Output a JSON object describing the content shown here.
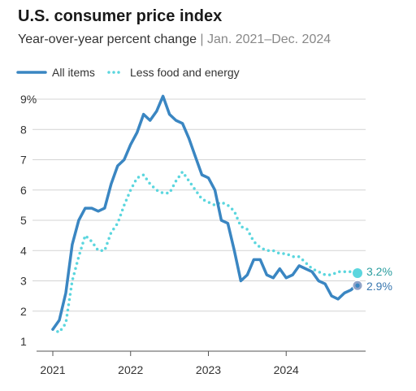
{
  "title": "U.S. consumer price index",
  "subtitle": "Year-over-year percent change",
  "subtitle_separator": " | ",
  "date_range": "Jan. 2021–Dec. 2024",
  "colors": {
    "all_items": "#3a86c2",
    "core": "#5bd6de",
    "core_label": "#2a9d9f",
    "all_label": "#3a78b0"
  },
  "chart_data": {
    "type": "line",
    "x_start": "2021-01",
    "x_end": "2024-12",
    "x_ticks": [
      "2021",
      "2022",
      "2023",
      "2024"
    ],
    "y_ticks": [
      "1",
      "2",
      "3",
      "4",
      "5",
      "6",
      "7",
      "8",
      "9%"
    ],
    "ylim": [
      1,
      9
    ],
    "grid": true,
    "legend_position": "top-left",
    "series": [
      {
        "name": "All items",
        "style": "solid",
        "values": [
          1.4,
          1.7,
          2.6,
          4.2,
          5.0,
          5.4,
          5.4,
          5.3,
          5.4,
          6.2,
          6.8,
          7.0,
          7.5,
          7.9,
          8.5,
          8.3,
          8.6,
          9.1,
          8.5,
          8.3,
          8.2,
          7.7,
          7.1,
          6.5,
          6.4,
          6.0,
          5.0,
          4.9,
          4.0,
          3.0,
          3.2,
          3.7,
          3.7,
          3.2,
          3.1,
          3.4,
          3.1,
          3.2,
          3.5,
          3.4,
          3.3,
          3.0,
          2.9,
          2.5,
          2.4,
          2.6,
          2.7,
          2.9
        ],
        "end_label": "2.9%"
      },
      {
        "name": "Less food and energy",
        "style": "dotted",
        "values": [
          1.4,
          1.3,
          1.6,
          3.0,
          3.8,
          4.5,
          4.3,
          4.0,
          4.0,
          4.6,
          4.9,
          5.5,
          6.0,
          6.4,
          6.5,
          6.2,
          6.0,
          5.9,
          5.9,
          6.3,
          6.6,
          6.3,
          6.0,
          5.7,
          5.6,
          5.5,
          5.6,
          5.5,
          5.3,
          4.8,
          4.7,
          4.3,
          4.1,
          4.0,
          4.0,
          3.9,
          3.9,
          3.8,
          3.8,
          3.6,
          3.4,
          3.3,
          3.2,
          3.2,
          3.3,
          3.3,
          3.3,
          3.2
        ],
        "end_label": "3.2%"
      }
    ]
  }
}
